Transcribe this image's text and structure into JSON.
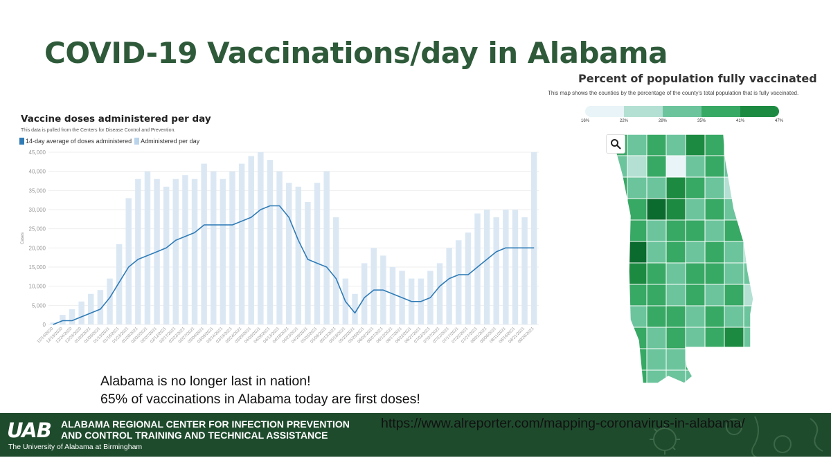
{
  "slide": {
    "title": "COVID-19 Vaccinations/day in Alabama",
    "note_line1": "Alabama is no longer last in nation!",
    "note_line2": "65% of vaccinations in Alabama today are first doses!"
  },
  "left_chart": {
    "title": "Vaccine doses administered per day",
    "subtitle": "This data is pulled from the Centers for Disease Control and Prevention.",
    "legend_avg": "14-day average of doses administered",
    "legend_daily": "Administered per day",
    "ylabel": "Cases",
    "colors": {
      "avg": "#2f7bb6",
      "daily": "#dbe8f4",
      "grid": "#eeeeee"
    }
  },
  "map": {
    "title": "Percent of population fully vaccinated",
    "subtitle": "This map shows the counties by the percentage of the county's total population that is fully vaccinated.",
    "scale_labels": [
      "16%",
      "22%",
      "28%",
      "35%",
      "41%",
      "47%"
    ],
    "scale_colors": [
      "#e8f4f7",
      "#b3e0d2",
      "#6cc49d",
      "#38a865",
      "#1d8a42",
      "#0b6a2e"
    ],
    "zoom_icon": "magnifier-icon"
  },
  "footer": {
    "logo_text": "UAB",
    "org_line1": "ALABAMA REGIONAL CENTER FOR INFECTION PREVENTION",
    "org_line2": "AND CONTROL TRAINING AND TECHNICAL ASSISTANCE",
    "university": "The University of Alabama at Birmingham",
    "url": "https://www.alreporter.com/mapping-coronavirus-in-alabama/",
    "background": "#1f4b2d"
  },
  "chart_data": {
    "type": "bar",
    "title": "Vaccine doses administered per day",
    "ylabel": "Cases",
    "ylim": [
      0,
      45000
    ],
    "yticks": [
      "0",
      "5,000",
      "10,000",
      "15,000",
      "20,000",
      "25,000",
      "30,000",
      "35,000",
      "40,000",
      "45,000"
    ],
    "xticks": [
      "12/14/2020",
      "12/19/2020",
      "12/24/2020",
      "12/29/2020",
      "01/03/2021",
      "01/08/2021",
      "01/13/2021",
      "01/18/2021",
      "01/23/2021",
      "01/28/2021",
      "02/02/2021",
      "02/07/2021",
      "02/12/2021",
      "02/17/2021",
      "02/22/2021",
      "02/27/2021",
      "03/04/2021",
      "03/09/2021",
      "03/14/2021",
      "03/19/2021",
      "03/24/2021",
      "03/29/2021",
      "04/03/2021",
      "04/08/2021",
      "04/13/2021",
      "04/18/2021",
      "04/23/2021",
      "04/28/2021",
      "05/03/2021",
      "05/08/2021",
      "05/13/2021",
      "05/18/2021",
      "05/23/2021",
      "05/28/2021",
      "06/02/2021",
      "06/07/2021",
      "06/12/2021",
      "06/17/2021",
      "06/22/2021",
      "06/27/2021",
      "07/02/2021",
      "07/07/2021",
      "07/12/2021",
      "07/17/2021",
      "07/22/2021",
      "07/27/2021",
      "08/01/2021",
      "08/06/2021",
      "08/11/2021",
      "08/16/2021",
      "08/21/2021",
      "08/26/2021"
    ],
    "series": [
      {
        "name": "14-day average of doses administered",
        "type": "line",
        "values": [
          0,
          1000,
          1000,
          2000,
          3000,
          4000,
          7000,
          11000,
          15000,
          17000,
          18000,
          19000,
          20000,
          22000,
          23000,
          24000,
          26000,
          26000,
          26000,
          26000,
          27000,
          28000,
          30000,
          31000,
          31000,
          28000,
          22000,
          17000,
          16000,
          15000,
          12000,
          6000,
          3000,
          7000,
          9000,
          9000,
          8000,
          7000,
          6000,
          6000,
          7000,
          10000,
          12000,
          13000,
          13000,
          15000,
          17000,
          19000,
          20000,
          20000,
          20000,
          20000
        ]
      },
      {
        "name": "Administered per day",
        "type": "bar",
        "values": [
          500,
          2500,
          4000,
          6000,
          8000,
          9000,
          12000,
          21000,
          33000,
          38000,
          40000,
          38000,
          36000,
          38000,
          39000,
          38000,
          42000,
          40000,
          38000,
          40000,
          42000,
          44000,
          45000,
          43000,
          40000,
          37000,
          36000,
          32000,
          37000,
          40000,
          28000,
          12000,
          8000,
          16000,
          20000,
          18000,
          15000,
          14000,
          12000,
          12000,
          14000,
          16000,
          20000,
          22000,
          24000,
          29000,
          30000,
          28000,
          30000,
          30000,
          28000,
          45000
        ]
      }
    ]
  }
}
